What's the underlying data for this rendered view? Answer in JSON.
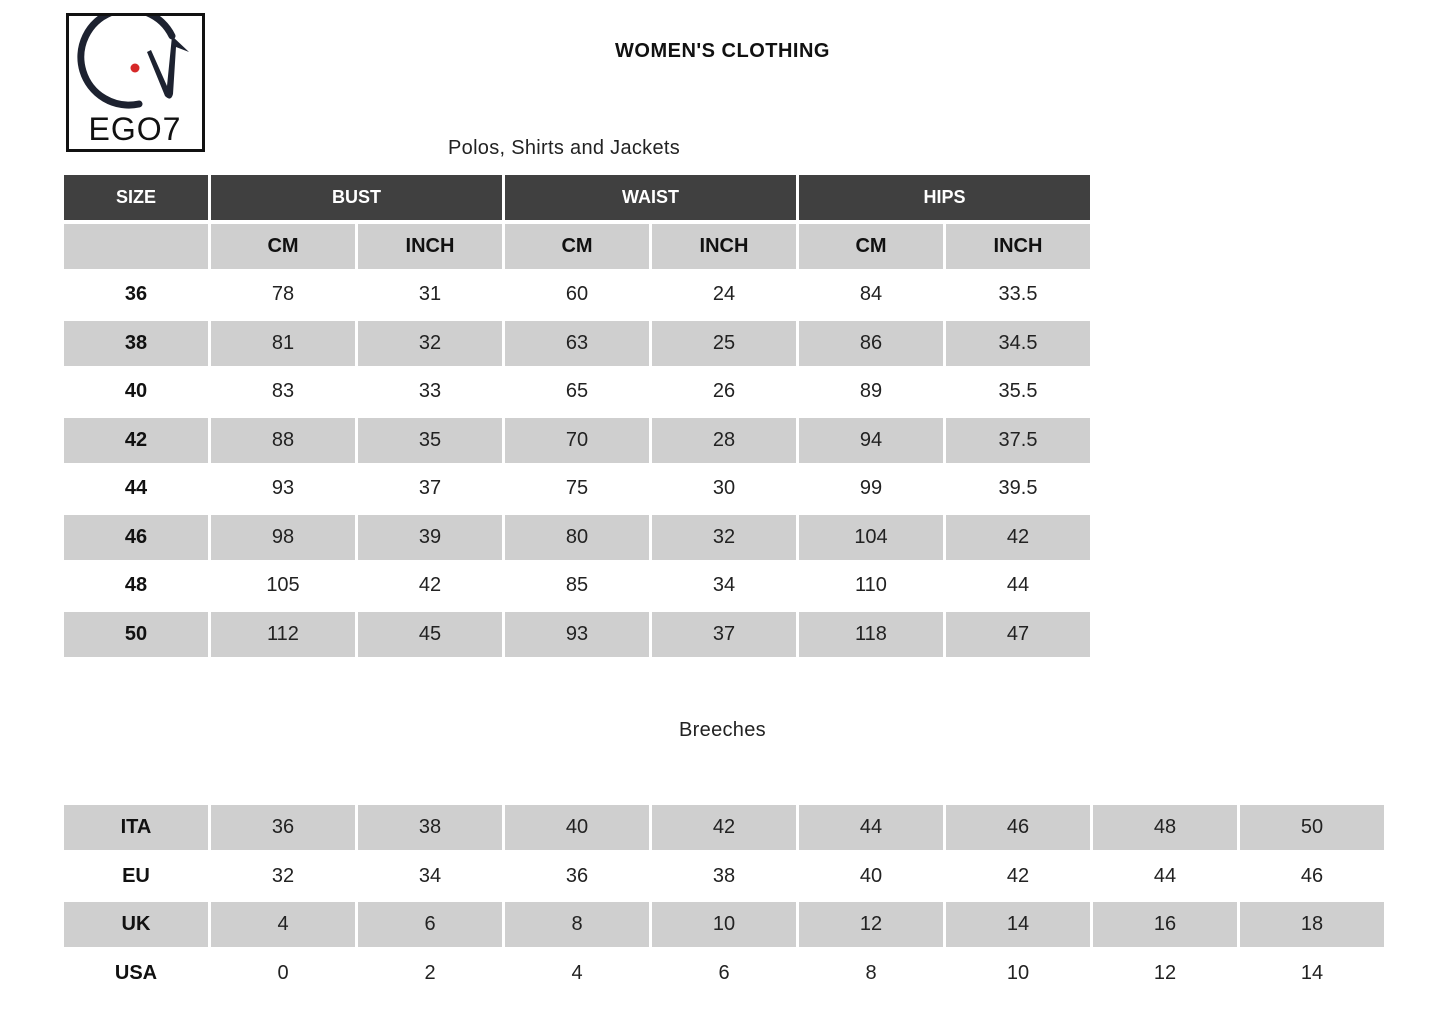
{
  "logo": {
    "text": "EGO7",
    "accent": "#d62828"
  },
  "title": "WOMEN'S CLOTHING",
  "polos": {
    "subtitle": "Polos, Shirts and Jackets",
    "groups": [
      "SIZE",
      "BUST",
      "WAIST",
      "HIPS"
    ],
    "units": [
      "CM",
      "INCH",
      "CM",
      "INCH",
      "CM",
      "INCH"
    ],
    "rows": [
      [
        "36",
        "78",
        "31",
        "60",
        "24",
        "84",
        "33.5"
      ],
      [
        "38",
        "81",
        "32",
        "63",
        "25",
        "86",
        "34.5"
      ],
      [
        "40",
        "83",
        "33",
        "65",
        "26",
        "89",
        "35.5"
      ],
      [
        "42",
        "88",
        "35",
        "70",
        "28",
        "94",
        "37.5"
      ],
      [
        "44",
        "93",
        "37",
        "75",
        "30",
        "99",
        "39.5"
      ],
      [
        "46",
        "98",
        "39",
        "80",
        "32",
        "104",
        "42"
      ],
      [
        "48",
        "105",
        "42",
        "85",
        "34",
        "110",
        "44"
      ],
      [
        "50",
        "112",
        "45",
        "93",
        "37",
        "118",
        "47"
      ]
    ]
  },
  "breeches": {
    "subtitle": "Breeches",
    "rows": [
      [
        "ITA",
        "36",
        "38",
        "40",
        "42",
        "44",
        "46",
        "48",
        "50"
      ],
      [
        "EU",
        "32",
        "34",
        "36",
        "38",
        "40",
        "42",
        "44",
        "46"
      ],
      [
        "UK",
        "4",
        "6",
        "8",
        "10",
        "12",
        "14",
        "16",
        "18"
      ],
      [
        "USA",
        "0",
        "2",
        "4",
        "6",
        "8",
        "10",
        "12",
        "14"
      ]
    ]
  }
}
